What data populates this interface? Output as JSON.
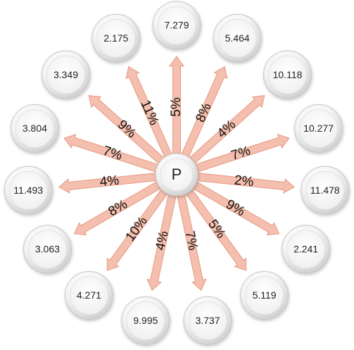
{
  "diagram": {
    "center_label": "P",
    "colors": {
      "arrow_fill": "#f4bfae",
      "arrow_stroke": "#e79a82",
      "node_fill_light": "#ffffff",
      "node_fill_dark": "#d6d6d6",
      "node_stroke": "#c8c8c8"
    },
    "nodes": [
      {
        "value": "7.279",
        "percent": "5%"
      },
      {
        "value": "5.464",
        "percent": "8%"
      },
      {
        "value": "10.118",
        "percent": "4%"
      },
      {
        "value": "10.277",
        "percent": "7%"
      },
      {
        "value": "11.478",
        "percent": "2%"
      },
      {
        "value": "2.241",
        "percent": "9%"
      },
      {
        "value": "5.119",
        "percent": "5%"
      },
      {
        "value": "3.737",
        "percent": "7%"
      },
      {
        "value": "9.995",
        "percent": "4%"
      },
      {
        "value": "4.271",
        "percent": "10%"
      },
      {
        "value": "3.063",
        "percent": "8%"
      },
      {
        "value": "11.493",
        "percent": "4%"
      },
      {
        "value": "3.804",
        "percent": "7%"
      },
      {
        "value": "3.349",
        "percent": "9%"
      },
      {
        "value": "2.175",
        "percent": "11%"
      }
    ]
  }
}
